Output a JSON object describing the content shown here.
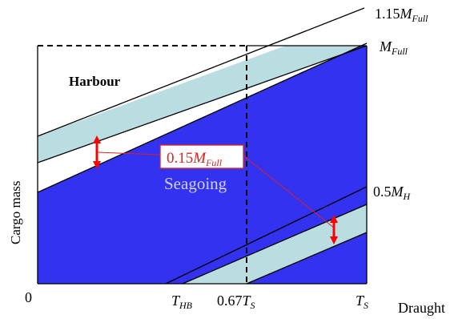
{
  "diagram": {
    "y_axis_label": "Cargo mass",
    "x_axis_label": "Draught",
    "origin_label": "0",
    "region_harbour": "Harbour",
    "region_seagoing": "Seagoing",
    "band_label": {
      "base": "0.15",
      "var": "M",
      "sub": "Full"
    },
    "right_labels": {
      "upper": {
        "coef": "1.15",
        "var": "M",
        "sub": "Full"
      },
      "full": {
        "coef": "",
        "var": "M",
        "sub": "Full"
      },
      "half": {
        "coef": "0.5",
        "var": "M",
        "sub": "H"
      }
    },
    "x_ticks": {
      "thb": {
        "coef": "",
        "var": "T",
        "sub": "HB"
      },
      "t067": {
        "coef": "0.67",
        "var": "T",
        "sub": "S"
      },
      "ts": {
        "coef": "",
        "var": "T",
        "sub": "S"
      }
    },
    "colors": {
      "seagoing_fill": "#3232f0",
      "tolerance_band": "#b9dde0",
      "arrow": "#ff0000",
      "annotation_line": "#e02020",
      "line": "#000000"
    }
  }
}
